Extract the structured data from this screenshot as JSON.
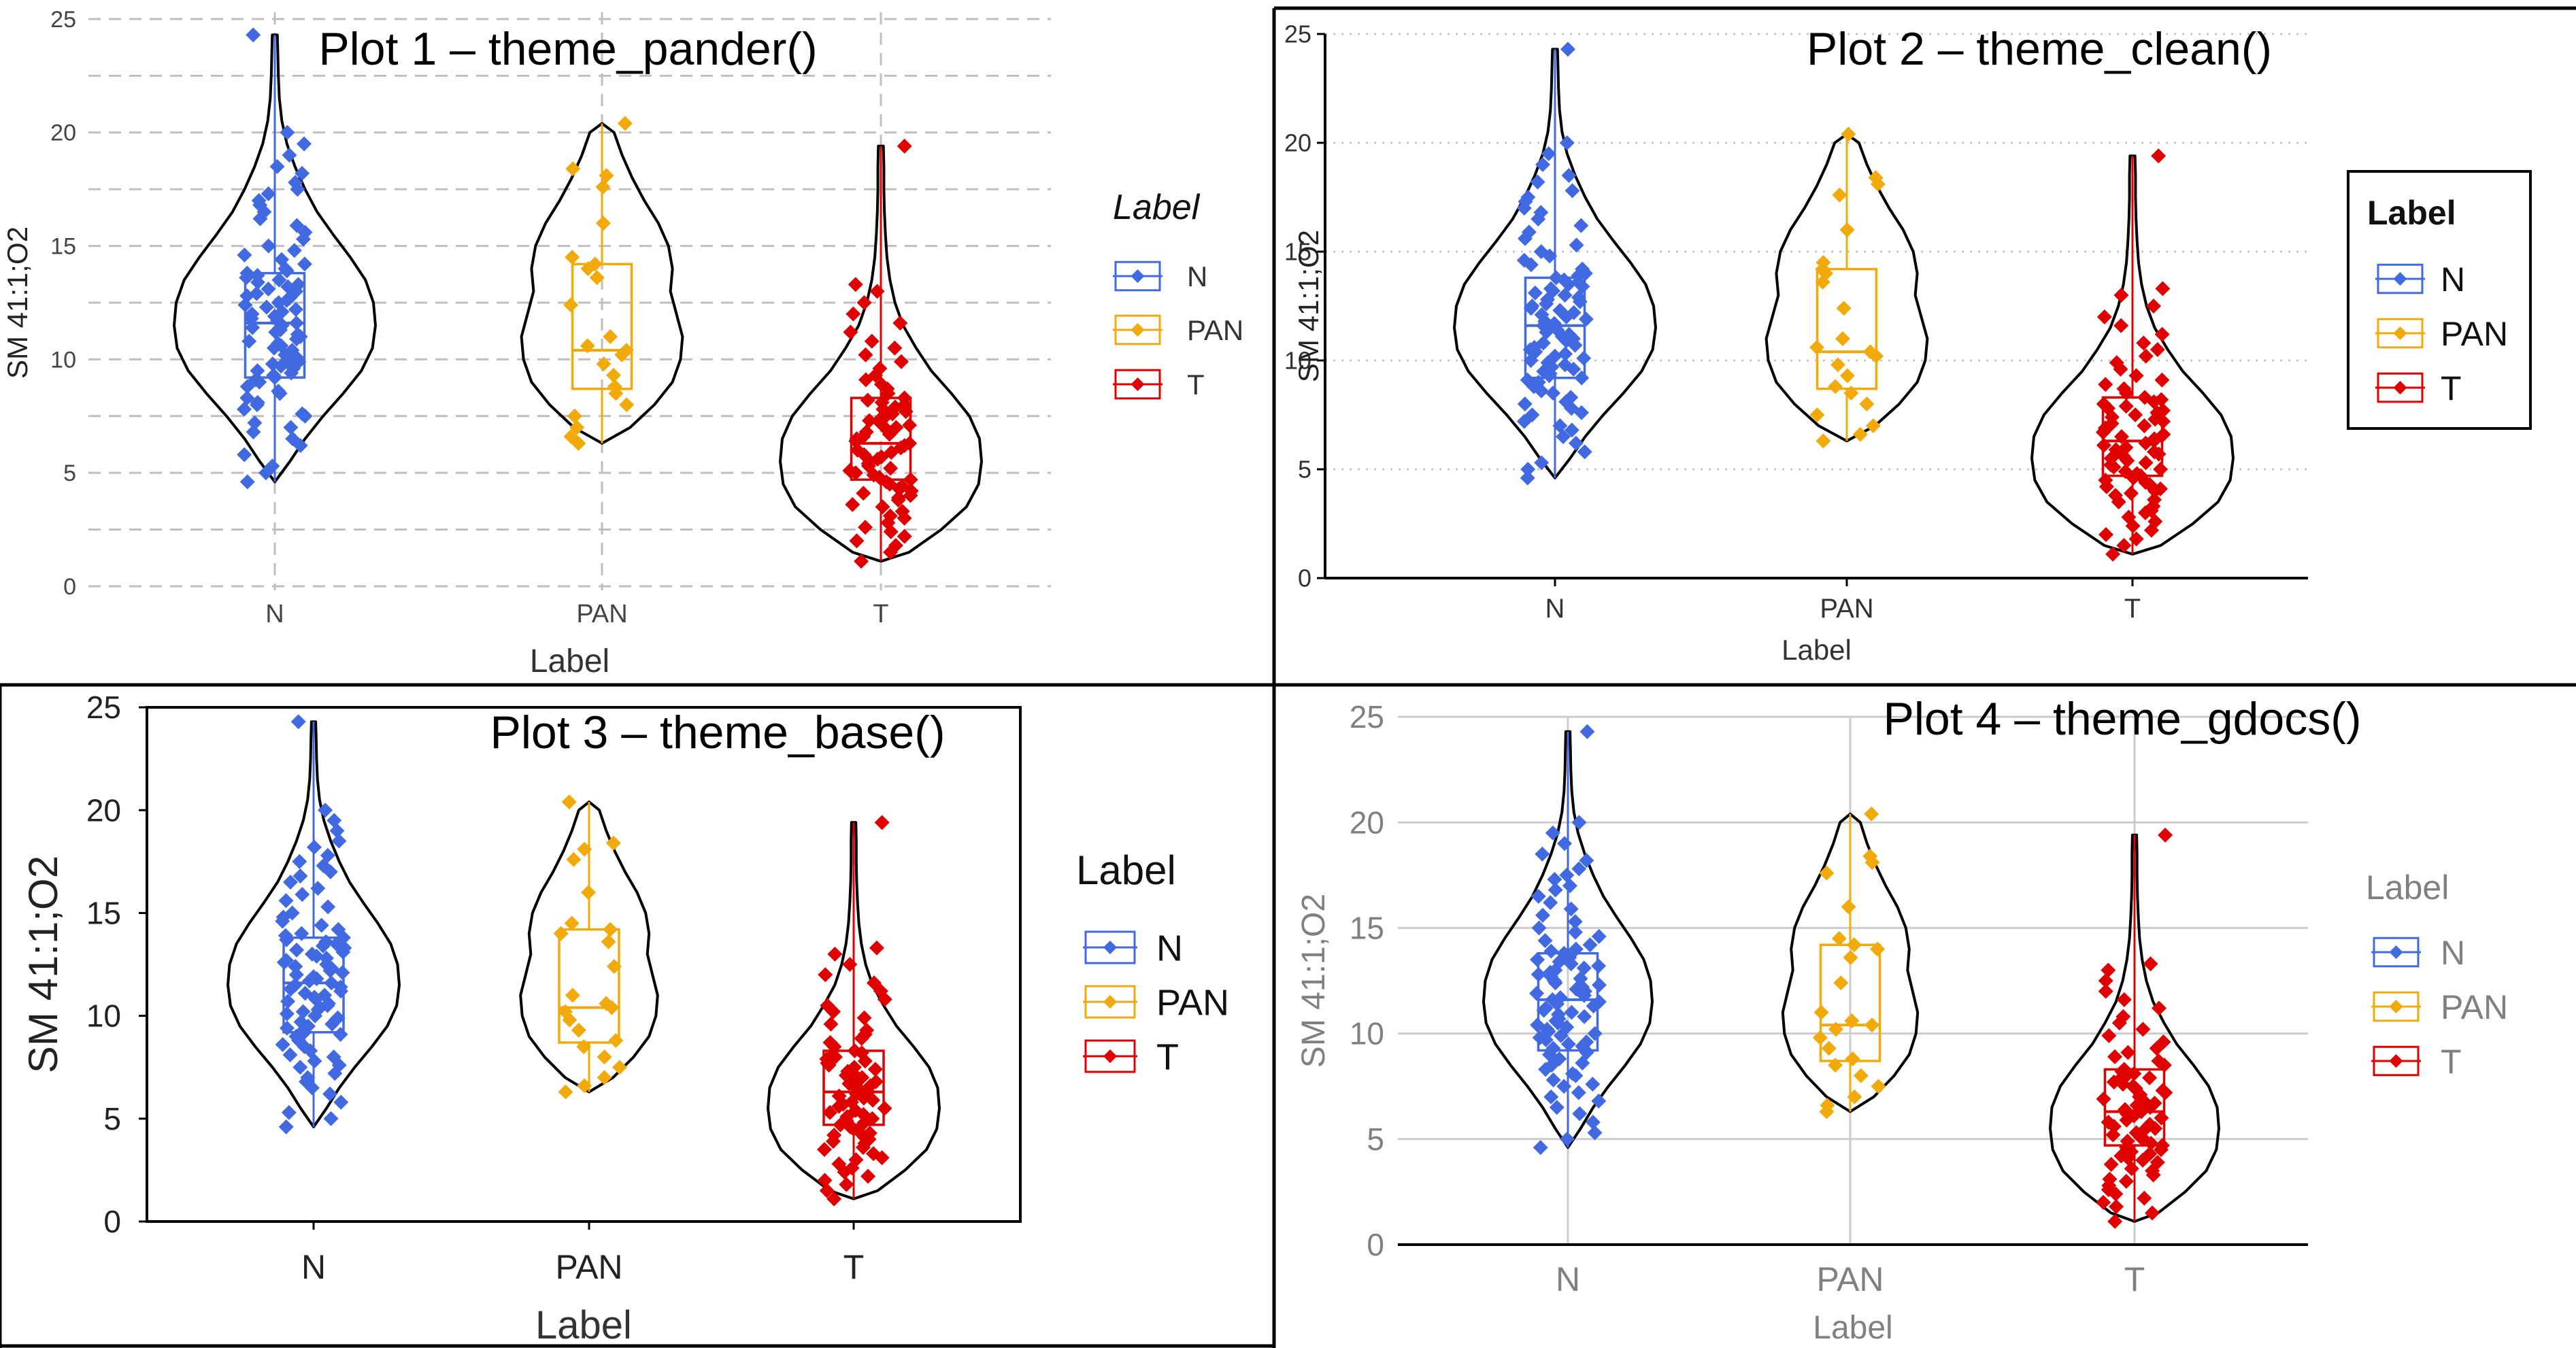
{
  "colors": {
    "N": "#4169E1",
    "PAN": "#F2AA0B",
    "T": "#E00000",
    "violin_outline": "#000000",
    "panel_border": "#000000",
    "grid_pander": "#BFBFBF",
    "grid_clean": "#C8C8C8",
    "grid_gdocs": "#CCCCCC",
    "gdocs_text": "#808080"
  },
  "figure": {
    "dividers": "black lines between the four plots"
  },
  "chart_data": [
    {
      "id": "plot1",
      "type": "violin",
      "title": "Plot 1 – theme_pander()",
      "xlabel": "Label",
      "ylabel": "SM 41:1;O2",
      "categories": [
        "N",
        "PAN",
        "T"
      ],
      "yticks": [
        "0",
        "5",
        "10",
        "15",
        "20",
        "25"
      ],
      "ylim": [
        0,
        25
      ],
      "grid": "dashed major and minor",
      "legend": {
        "title": "Label",
        "items": [
          "N",
          "PAN",
          "T"
        ],
        "position": "right",
        "style": "italic title"
      }
    },
    {
      "id": "plot2",
      "type": "violin",
      "title": "Plot 2 – theme_clean()",
      "xlabel": "Label",
      "ylabel": "SM 41:1;O2",
      "categories": [
        "N",
        "PAN",
        "T"
      ],
      "yticks": [
        "0",
        "5",
        "10",
        "15",
        "20",
        "25"
      ],
      "ylim": [
        0,
        25
      ],
      "grid": "dotted horizontal",
      "legend": {
        "title": "Label",
        "items": [
          "N",
          "PAN",
          "T"
        ],
        "position": "right",
        "style": "boxed, bold title"
      }
    },
    {
      "id": "plot3",
      "type": "violin",
      "title": "Plot 3 – theme_base()",
      "xlabel": "Label",
      "ylabel": "SM 41:1;O2",
      "categories": [
        "N",
        "PAN",
        "T"
      ],
      "yticks": [
        "0",
        "5",
        "10",
        "15",
        "20",
        "25"
      ],
      "ylim": [
        0,
        25
      ],
      "grid": "none, panel border",
      "legend": {
        "title": "Label",
        "items": [
          "N",
          "PAN",
          "T"
        ],
        "position": "right",
        "style": "plain"
      }
    },
    {
      "id": "plot4",
      "type": "violin",
      "title": "Plot 4 – theme_gdocs()",
      "xlabel": "Label",
      "ylabel": "SM 41:1;O2",
      "categories": [
        "N",
        "PAN",
        "T"
      ],
      "yticks": [
        "0",
        "5",
        "10",
        "15",
        "20",
        "25"
      ],
      "ylim": [
        0,
        25
      ],
      "grid": "solid major",
      "legend": {
        "title": "Label",
        "items": [
          "N",
          "PAN",
          "T"
        ],
        "position": "right",
        "style": "grey text"
      }
    }
  ],
  "series": {
    "N": {
      "box": {
        "min": 4.6,
        "q1": 9.2,
        "median": 11.6,
        "q3": 13.8,
        "max": 24.3
      },
      "violin": [
        [
          4.6,
          0.0
        ],
        [
          5.5,
          0.15
        ],
        [
          6.5,
          0.3
        ],
        [
          7.5,
          0.48
        ],
        [
          8.5,
          0.68
        ],
        [
          9.5,
          0.86
        ],
        [
          10.5,
          0.97
        ],
        [
          11.5,
          1.0
        ],
        [
          12.5,
          0.98
        ],
        [
          13.5,
          0.9
        ],
        [
          14.5,
          0.75
        ],
        [
          15.5,
          0.58
        ],
        [
          16.5,
          0.42
        ],
        [
          17.5,
          0.3
        ],
        [
          18.5,
          0.2
        ],
        [
          19.5,
          0.12
        ],
        [
          20.5,
          0.07
        ],
        [
          21.5,
          0.045
        ],
        [
          22.5,
          0.035
        ],
        [
          23.5,
          0.03
        ],
        [
          24.3,
          0.025
        ]
      ],
      "points": [
        4.6,
        5.0,
        5.3,
        5.8,
        6.2,
        6.5,
        6.8,
        7.0,
        7.2,
        7.5,
        7.6,
        7.8,
        8.0,
        8.1,
        8.3,
        8.5,
        8.6,
        8.8,
        9.0,
        9.1,
        9.2,
        9.3,
        9.4,
        9.5,
        9.6,
        9.7,
        9.8,
        9.9,
        10.0,
        10.1,
        10.2,
        10.3,
        10.4,
        10.5,
        10.6,
        10.7,
        10.8,
        10.9,
        11.0,
        11.1,
        11.2,
        11.3,
        11.4,
        11.5,
        11.6,
        11.7,
        11.8,
        11.9,
        12.0,
        12.1,
        12.2,
        12.3,
        12.4,
        12.5,
        12.6,
        12.7,
        12.8,
        12.9,
        13.0,
        13.1,
        13.2,
        13.3,
        13.4,
        13.5,
        13.6,
        13.7,
        13.8,
        13.9,
        14.0,
        14.2,
        14.4,
        14.6,
        14.8,
        15.0,
        15.3,
        15.6,
        15.9,
        16.2,
        16.5,
        16.8,
        17.0,
        17.3,
        17.5,
        17.8,
        18.2,
        18.5,
        19.0,
        19.5,
        20.0,
        24.3
      ]
    },
    "PAN": {
      "box": {
        "min": 6.3,
        "q1": 8.7,
        "median": 10.4,
        "q3": 14.2,
        "max": 20.4
      },
      "violin": [
        [
          6.3,
          0.0
        ],
        [
          7.0,
          0.28
        ],
        [
          8.0,
          0.52
        ],
        [
          9.0,
          0.7
        ],
        [
          10.0,
          0.78
        ],
        [
          11.0,
          0.8
        ],
        [
          12.0,
          0.74
        ],
        [
          13.0,
          0.68
        ],
        [
          14.0,
          0.7
        ],
        [
          15.0,
          0.66
        ],
        [
          16.0,
          0.56
        ],
        [
          17.0,
          0.42
        ],
        [
          18.0,
          0.3
        ],
        [
          19.0,
          0.2
        ],
        [
          20.0,
          0.12
        ],
        [
          20.4,
          0.0
        ]
      ],
      "points": [
        6.3,
        6.6,
        7.0,
        7.5,
        8.0,
        8.5,
        8.8,
        9.3,
        9.8,
        10.2,
        10.4,
        10.6,
        11.0,
        12.4,
        13.6,
        14.0,
        14.2,
        14.5,
        16.0,
        17.6,
        18.1,
        18.4,
        20.4
      ]
    },
    "T": {
      "box": {
        "min": 1.1,
        "q1": 4.7,
        "median": 6.3,
        "q3": 8.3,
        "max": 19.4
      },
      "violin": [
        [
          1.1,
          0.0
        ],
        [
          1.5,
          0.28
        ],
        [
          2.5,
          0.6
        ],
        [
          3.5,
          0.85
        ],
        [
          4.5,
          0.97
        ],
        [
          5.5,
          1.0
        ],
        [
          6.5,
          0.98
        ],
        [
          7.5,
          0.88
        ],
        [
          8.5,
          0.7
        ],
        [
          9.5,
          0.5
        ],
        [
          10.5,
          0.35
        ],
        [
          11.5,
          0.22
        ],
        [
          12.5,
          0.14
        ],
        [
          13.5,
          0.09
        ],
        [
          14.5,
          0.06
        ],
        [
          15.5,
          0.045
        ],
        [
          16.5,
          0.035
        ],
        [
          17.5,
          0.03
        ],
        [
          18.5,
          0.03
        ],
        [
          19.4,
          0.025
        ]
      ],
      "points": [
        1.1,
        1.5,
        1.8,
        2.0,
        2.2,
        2.4,
        2.6,
        2.8,
        3.0,
        3.1,
        3.3,
        3.5,
        3.6,
        3.8,
        3.9,
        4.0,
        4.1,
        4.2,
        4.3,
        4.4,
        4.5,
        4.6,
        4.7,
        4.8,
        4.9,
        5.0,
        5.1,
        5.2,
        5.3,
        5.4,
        5.5,
        5.6,
        5.7,
        5.8,
        5.9,
        6.0,
        6.1,
        6.2,
        6.3,
        6.4,
        6.5,
        6.6,
        6.7,
        6.8,
        6.9,
        7.0,
        7.1,
        7.2,
        7.3,
        7.4,
        7.5,
        7.6,
        7.7,
        7.8,
        7.9,
        8.0,
        8.1,
        8.2,
        8.3,
        8.5,
        8.7,
        8.9,
        9.1,
        9.3,
        9.6,
        9.9,
        10.2,
        10.5,
        10.8,
        11.2,
        11.6,
        12.0,
        12.5,
        13.0,
        13.3,
        19.4
      ]
    }
  }
}
